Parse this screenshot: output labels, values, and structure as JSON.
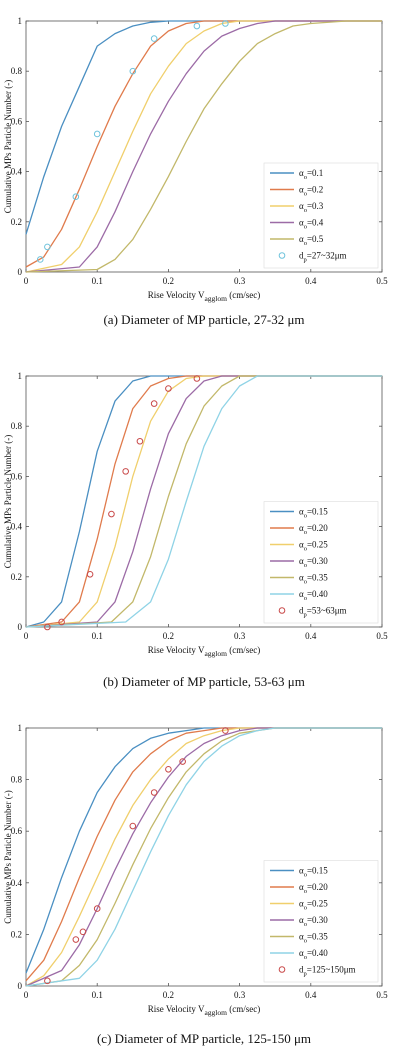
{
  "panels": [
    {
      "caption": "(a)  Diameter  of  MP  particle,  27-32  μm",
      "ylabel": "Cumulative MPs Particle Number (-)",
      "xlabel_main": "Rise Velocity V",
      "xlabel_sub": "agglom",
      "xlabel_unit": " (cm/sec)"
    },
    {
      "caption": "(b)  Diameter  of  MP  particle,  53-63  μm",
      "ylabel": "Cumulative MPs Particle Number (-)",
      "xlabel_main": "Rise Velocity V",
      "xlabel_sub": "agglom",
      "xlabel_unit": " (cm/sec)"
    },
    {
      "caption": "(c)  Diameter  of  MP  particle,  125-150  μm",
      "ylabel": "Cumulative MPs Particle Number (-)",
      "xlabel_main": "Rise Velocity V",
      "xlabel_sub": "agglom",
      "xlabel_unit": " (cm/sec)"
    }
  ],
  "chart_data": [
    {
      "type": "line",
      "xlim": [
        0,
        0.5
      ],
      "ylim": [
        0,
        1
      ],
      "xticks": [
        "0",
        "0.1",
        "0.2",
        "0.3",
        "0.4",
        "0.5"
      ],
      "yticks": [
        "0",
        "0.2",
        "0.4",
        "0.6",
        "0.8",
        "1"
      ],
      "legend_position": "right",
      "series": [
        {
          "name": "α_o=0.1",
          "label_main": "α",
          "label_sub": "o",
          "label_rest": "=0.1",
          "color": "#4a8fc2",
          "x": [
            0,
            0.025,
            0.05,
            0.075,
            0.1,
            0.125,
            0.15,
            0.175,
            0.2,
            0.25,
            0.3,
            0.5
          ],
          "y": [
            0.15,
            0.38,
            0.58,
            0.74,
            0.9,
            0.95,
            0.98,
            0.995,
            1,
            1,
            1,
            1
          ]
        },
        {
          "name": "α_o=0.2",
          "label_main": "α",
          "label_sub": "o",
          "label_rest": "=0.2",
          "color": "#e07b4c",
          "x": [
            0,
            0.025,
            0.05,
            0.075,
            0.1,
            0.125,
            0.15,
            0.175,
            0.2,
            0.225,
            0.25,
            0.3,
            0.5
          ],
          "y": [
            0.02,
            0.06,
            0.17,
            0.33,
            0.5,
            0.66,
            0.79,
            0.9,
            0.96,
            0.99,
            1,
            1,
            1
          ]
        },
        {
          "name": "α_o=0.3",
          "label_main": "α",
          "label_sub": "o",
          "label_rest": "=0.3",
          "color": "#f0cf6c",
          "x": [
            0,
            0.05,
            0.075,
            0.1,
            0.125,
            0.15,
            0.175,
            0.2,
            0.225,
            0.25,
            0.275,
            0.3,
            0.35,
            0.5
          ],
          "y": [
            0,
            0.03,
            0.1,
            0.24,
            0.4,
            0.56,
            0.71,
            0.82,
            0.91,
            0.96,
            0.99,
            1,
            1,
            1
          ]
        },
        {
          "name": "α_o=0.4",
          "label_main": "α",
          "label_sub": "o",
          "label_rest": "=0.4",
          "color": "#9c6ba6",
          "x": [
            0,
            0.075,
            0.1,
            0.125,
            0.15,
            0.175,
            0.2,
            0.225,
            0.25,
            0.275,
            0.3,
            0.325,
            0.35,
            0.4,
            0.5
          ],
          "y": [
            0,
            0.02,
            0.1,
            0.24,
            0.4,
            0.55,
            0.68,
            0.79,
            0.88,
            0.94,
            0.97,
            0.99,
            1,
            1,
            1
          ]
        },
        {
          "name": "α_o=0.5",
          "label_main": "α",
          "label_sub": "o",
          "label_rest": "=0.5",
          "color": "#c2b86a",
          "x": [
            0,
            0.1,
            0.125,
            0.15,
            0.175,
            0.2,
            0.225,
            0.25,
            0.275,
            0.3,
            0.325,
            0.35,
            0.375,
            0.4,
            0.45,
            0.5
          ],
          "y": [
            0,
            0.01,
            0.05,
            0.13,
            0.25,
            0.38,
            0.52,
            0.65,
            0.75,
            0.84,
            0.91,
            0.95,
            0.98,
            0.99,
            1,
            1
          ]
        }
      ],
      "markers": {
        "name": "d_p=27~32μm",
        "label_main": "d",
        "label_sub": "p",
        "label_rest": "=27~32μm",
        "color": "#6fc3dc",
        "x": [
          0.02,
          0.03,
          0.07,
          0.1,
          0.15,
          0.18,
          0.24,
          0.28
        ],
        "y": [
          0.05,
          0.1,
          0.3,
          0.55,
          0.8,
          0.93,
          0.98,
          0.99
        ]
      }
    },
    {
      "type": "line",
      "xlim": [
        0,
        0.5
      ],
      "ylim": [
        0,
        1
      ],
      "xticks": [
        "0",
        "0.1",
        "0.2",
        "0.3",
        "0.4",
        "0.5"
      ],
      "yticks": [
        "0",
        "0.2",
        "0.4",
        "0.6",
        "0.8",
        "1"
      ],
      "legend_position": "right",
      "series": [
        {
          "name": "α_o=0.15",
          "label_main": "α",
          "label_sub": "o",
          "label_rest": "=0.15",
          "color": "#4a8fc2",
          "x": [
            0,
            0.025,
            0.05,
            0.075,
            0.1,
            0.125,
            0.15,
            0.175,
            0.2,
            0.5
          ],
          "y": [
            0,
            0.02,
            0.1,
            0.38,
            0.7,
            0.9,
            0.98,
            1,
            1,
            1
          ]
        },
        {
          "name": "α_o=0.20",
          "label_main": "α",
          "label_sub": "o",
          "label_rest": "=0.20",
          "color": "#e07b4c",
          "x": [
            0,
            0.05,
            0.075,
            0.1,
            0.125,
            0.15,
            0.175,
            0.2,
            0.225,
            0.5
          ],
          "y": [
            0,
            0.02,
            0.1,
            0.35,
            0.65,
            0.87,
            0.96,
            0.99,
            1,
            1
          ]
        },
        {
          "name": "α_o=0.25",
          "label_main": "α",
          "label_sub": "o",
          "label_rest": "=0.25",
          "color": "#f0cf6c",
          "x": [
            0,
            0.075,
            0.1,
            0.125,
            0.15,
            0.175,
            0.2,
            0.225,
            0.25,
            0.5
          ],
          "y": [
            0,
            0.02,
            0.1,
            0.32,
            0.6,
            0.82,
            0.94,
            0.99,
            1,
            1
          ]
        },
        {
          "name": "α_o=0.30",
          "label_main": "α",
          "label_sub": "o",
          "label_rest": "=0.30",
          "color": "#9c6ba6",
          "x": [
            0,
            0.1,
            0.125,
            0.15,
            0.175,
            0.2,
            0.225,
            0.25,
            0.275,
            0.5
          ],
          "y": [
            0,
            0.02,
            0.1,
            0.3,
            0.55,
            0.77,
            0.91,
            0.98,
            1,
            1
          ]
        },
        {
          "name": "α_o=0.35",
          "label_main": "α",
          "label_sub": "o",
          "label_rest": "=0.35",
          "color": "#c2b86a",
          "x": [
            0,
            0.12,
            0.15,
            0.175,
            0.2,
            0.225,
            0.25,
            0.275,
            0.3,
            0.5
          ],
          "y": [
            0,
            0.02,
            0.1,
            0.28,
            0.52,
            0.73,
            0.88,
            0.96,
            1,
            1
          ]
        },
        {
          "name": "α_o=0.40",
          "label_main": "α",
          "label_sub": "o",
          "label_rest": "=0.40",
          "color": "#8fd3e6",
          "x": [
            0,
            0.14,
            0.175,
            0.2,
            0.225,
            0.25,
            0.275,
            0.3,
            0.325,
            0.5
          ],
          "y": [
            0,
            0.02,
            0.1,
            0.27,
            0.5,
            0.72,
            0.87,
            0.96,
            1,
            1
          ]
        }
      ],
      "markers": {
        "name": "d_p=53~63μm",
        "label_main": "d",
        "label_sub": "p",
        "label_rest": "=53~63μm",
        "color": "#c94a4a",
        "x": [
          0.03,
          0.05,
          0.09,
          0.12,
          0.14,
          0.16,
          0.18,
          0.2,
          0.24
        ],
        "y": [
          0,
          0.02,
          0.21,
          0.45,
          0.62,
          0.74,
          0.89,
          0.95,
          0.99
        ]
      }
    },
    {
      "type": "line",
      "xlim": [
        0,
        0.5
      ],
      "ylim": [
        0,
        1
      ],
      "xticks": [
        "0",
        "0.1",
        "0.2",
        "0.3",
        "0.4",
        "0.5"
      ],
      "yticks": [
        "0",
        "0.2",
        "0.4",
        "0.6",
        "0.8",
        "1"
      ],
      "legend_position": "right",
      "series": [
        {
          "name": "α_o=0.15",
          "label_main": "α",
          "label_sub": "o",
          "label_rest": "=0.15",
          "color": "#4a8fc2",
          "x": [
            0,
            0.025,
            0.05,
            0.075,
            0.1,
            0.125,
            0.15,
            0.175,
            0.2,
            0.225,
            0.25,
            0.5
          ],
          "y": [
            0.05,
            0.22,
            0.42,
            0.6,
            0.75,
            0.85,
            0.92,
            0.96,
            0.98,
            0.99,
            1,
            1
          ]
        },
        {
          "name": "α_o=0.20",
          "label_main": "α",
          "label_sub": "o",
          "label_rest": "=0.20",
          "color": "#e07b4c",
          "x": [
            0,
            0.025,
            0.05,
            0.075,
            0.1,
            0.125,
            0.15,
            0.175,
            0.2,
            0.225,
            0.25,
            0.275,
            0.5
          ],
          "y": [
            0.02,
            0.1,
            0.25,
            0.42,
            0.58,
            0.72,
            0.83,
            0.9,
            0.95,
            0.98,
            0.99,
            1,
            1
          ]
        },
        {
          "name": "α_o=0.25",
          "label_main": "α",
          "label_sub": "o",
          "label_rest": "=0.25",
          "color": "#f0cf6c",
          "x": [
            0,
            0.025,
            0.05,
            0.075,
            0.1,
            0.125,
            0.15,
            0.175,
            0.2,
            0.225,
            0.25,
            0.275,
            0.3,
            0.5
          ],
          "y": [
            0,
            0.04,
            0.13,
            0.27,
            0.42,
            0.57,
            0.7,
            0.8,
            0.88,
            0.94,
            0.97,
            0.99,
            1,
            1
          ]
        },
        {
          "name": "α_o=0.30",
          "label_main": "α",
          "label_sub": "o",
          "label_rest": "=0.30",
          "color": "#9c6ba6",
          "x": [
            0,
            0.05,
            0.075,
            0.1,
            0.125,
            0.15,
            0.175,
            0.2,
            0.225,
            0.25,
            0.275,
            0.3,
            0.325,
            0.5
          ],
          "y": [
            0,
            0.06,
            0.16,
            0.3,
            0.45,
            0.59,
            0.71,
            0.81,
            0.89,
            0.94,
            0.97,
            0.99,
            1,
            1
          ]
        },
        {
          "name": "α_o=0.35",
          "label_main": "α",
          "label_sub": "o",
          "label_rest": "=0.35",
          "color": "#c2b86a",
          "x": [
            0,
            0.05,
            0.075,
            0.1,
            0.125,
            0.15,
            0.175,
            0.2,
            0.225,
            0.25,
            0.275,
            0.3,
            0.325,
            0.35,
            0.5
          ],
          "y": [
            0,
            0.02,
            0.08,
            0.18,
            0.32,
            0.47,
            0.61,
            0.73,
            0.83,
            0.9,
            0.95,
            0.98,
            0.99,
            1,
            1
          ]
        },
        {
          "name": "α_o=0.40",
          "label_main": "α",
          "label_sub": "o",
          "label_rest": "=0.40",
          "color": "#8fd3e6",
          "x": [
            0,
            0.075,
            0.1,
            0.125,
            0.15,
            0.175,
            0.2,
            0.225,
            0.25,
            0.275,
            0.3,
            0.325,
            0.35,
            0.375,
            0.5
          ],
          "y": [
            0,
            0.03,
            0.1,
            0.22,
            0.37,
            0.52,
            0.66,
            0.78,
            0.87,
            0.93,
            0.97,
            0.99,
            1,
            1,
            1
          ]
        }
      ],
      "markers": {
        "name": "d_p=125~150μm",
        "label_main": "d",
        "label_sub": "p",
        "label_rest": "=125~150μm",
        "color": "#c94a4a",
        "x": [
          0.03,
          0.07,
          0.08,
          0.1,
          0.15,
          0.18,
          0.2,
          0.22,
          0.28
        ],
        "y": [
          0.02,
          0.18,
          0.21,
          0.3,
          0.62,
          0.75,
          0.84,
          0.87,
          0.99
        ]
      }
    }
  ]
}
